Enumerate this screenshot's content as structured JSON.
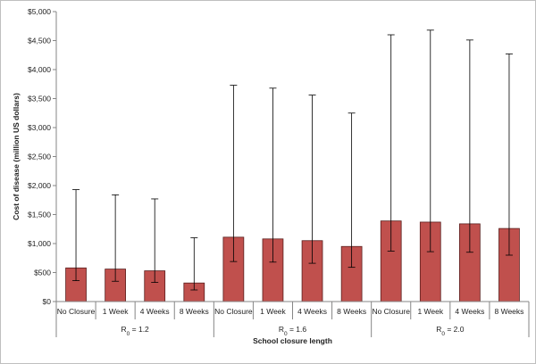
{
  "chart_data": {
    "type": "bar",
    "xlabel": "School closure length",
    "ylabel": "Cost of disease (million US dollars)",
    "ylim": [
      0,
      5000
    ],
    "y_ticks": [
      "$0",
      "$500",
      "$1,000",
      "$1,500",
      "$2,000",
      "$2,500",
      "$3,000",
      "$3,500",
      "$4,000",
      "$4,500",
      "$5,000"
    ],
    "y_tick_values": [
      0,
      500,
      1000,
      1500,
      2000,
      2500,
      3000,
      3500,
      4000,
      4500,
      5000
    ],
    "bar_color": "#c0504d",
    "bar_edge_color": "#5a1e1d",
    "grid": false,
    "groups": [
      {
        "label": "R0 = 1.2",
        "label_main": "R",
        "label_sub": "0",
        "label_rest": " = 1.2",
        "categories": [
          "No Closure",
          "1 Week",
          "4 Weeks",
          "8 Weeks"
        ],
        "values": [
          580,
          560,
          530,
          320
        ],
        "error_low": [
          360,
          350,
          330,
          200
        ],
        "error_high": [
          1930,
          1840,
          1770,
          1100
        ]
      },
      {
        "label": "R0 = 1.6",
        "label_main": "R",
        "label_sub": "0",
        "label_rest": " = 1.6",
        "categories": [
          "No Closure",
          "1 Week",
          "4 Weeks",
          "8 Weeks"
        ],
        "values": [
          1110,
          1080,
          1050,
          950
        ],
        "error_low": [
          690,
          680,
          660,
          590
        ],
        "error_high": [
          3730,
          3680,
          3560,
          3250
        ]
      },
      {
        "label": "R0 = 2.0",
        "label_main": "R",
        "label_sub": "0",
        "label_rest": " = 2.0",
        "categories": [
          "No Closure",
          "1 Week",
          "4 Weeks",
          "8 Weeks"
        ],
        "values": [
          1390,
          1370,
          1340,
          1260
        ],
        "error_low": [
          870,
          860,
          850,
          800
        ],
        "error_high": [
          4600,
          4680,
          4510,
          4270
        ]
      }
    ]
  }
}
